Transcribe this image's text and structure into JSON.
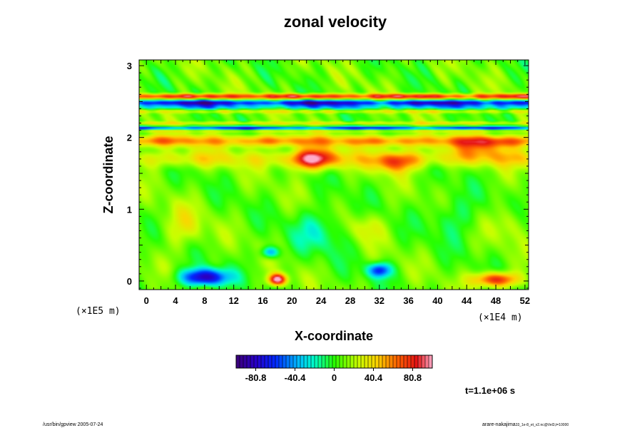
{
  "chart_data": {
    "type": "heatmap",
    "title": "zonal velocity",
    "xlabel": "X-coordinate",
    "ylabel": "Z-coordinate",
    "x_scale_label": "(×1E4 m)",
    "y_scale_label": "(×1E5 m)",
    "xlim": [
      -1,
      52.5
    ],
    "ylim": [
      -0.12,
      3.08
    ],
    "x_ticks": [
      0,
      4,
      8,
      12,
      16,
      20,
      24,
      28,
      32,
      36,
      40,
      44,
      48,
      52
    ],
    "y_ticks": [
      0,
      1,
      2,
      3
    ],
    "colorbar": {
      "range": [
        -101,
        101
      ],
      "tick_values": [
        -80.8,
        -40.4,
        0,
        40.4,
        80.8
      ],
      "tick_labels": [
        "-80.8",
        "-40.4",
        "0",
        "40.4",
        "80.8"
      ]
    },
    "time_label": "t=1.1e+06 s",
    "field": {
      "background": 8,
      "bands": [
        {
          "z": 2.58,
          "width": 0.03,
          "value": 70
        },
        {
          "z": 2.55,
          "width": 0.025,
          "value": 35
        },
        {
          "z": 2.48,
          "width": 0.04,
          "value": -95
        },
        {
          "z": 2.42,
          "width": 0.03,
          "value": -40
        },
        {
          "z": 2.36,
          "width": 0.025,
          "value": 25
        },
        {
          "z": 2.2,
          "width": 0.02,
          "value": 30
        },
        {
          "z": 2.13,
          "width": 0.022,
          "value": -80
        },
        {
          "z": 2.09,
          "width": 0.02,
          "value": 20
        },
        {
          "z": 1.95,
          "width": 0.08,
          "value": 55
        },
        {
          "z": 1.7,
          "width": 0.12,
          "value": 30
        }
      ],
      "blobs": [
        {
          "x": 8,
          "z": 0.05,
          "rx": 3.2,
          "rz": 0.12,
          "value": -95
        },
        {
          "x": 18,
          "z": 0.02,
          "rx": 1.2,
          "rz": 0.08,
          "value": 101
        },
        {
          "x": 32,
          "z": 0.15,
          "rx": 1.6,
          "rz": 0.1,
          "value": -70
        },
        {
          "x": 48,
          "z": 0.02,
          "rx": 3,
          "rz": 0.1,
          "value": 80
        },
        {
          "x": 17,
          "z": 0.4,
          "rx": 1.2,
          "rz": 0.08,
          "value": -55
        },
        {
          "x": 23,
          "z": 1.7,
          "rx": 3,
          "rz": 0.15,
          "value": 70
        },
        {
          "x": 34,
          "z": 1.65,
          "rx": 3,
          "rz": 0.15,
          "value": 45
        },
        {
          "x": 46,
          "z": 1.85,
          "rx": 5,
          "rz": 0.15,
          "value": 35
        },
        {
          "x": 24,
          "z": 0.7,
          "rx": 4,
          "rz": 0.3,
          "value": -25
        },
        {
          "x": 42,
          "z": 0.9,
          "rx": 3,
          "rz": 0.3,
          "value": -20
        },
        {
          "x": 5,
          "z": 0.75,
          "rx": 3,
          "rz": 0.3,
          "value": 22
        },
        {
          "x": 30,
          "z": 0.75,
          "rx": 2.5,
          "rz": 0.2,
          "value": 22
        },
        {
          "x": 50,
          "z": 0.8,
          "rx": 2,
          "rz": 0.25,
          "value": 18
        }
      ]
    }
  },
  "footer": {
    "left": "/usr/bin/gpview 2005-07-24",
    "right_main": "arare-nakajima",
    "right_sub": "33_1e-8_et_v2.nc@Vel3,t=10000"
  }
}
